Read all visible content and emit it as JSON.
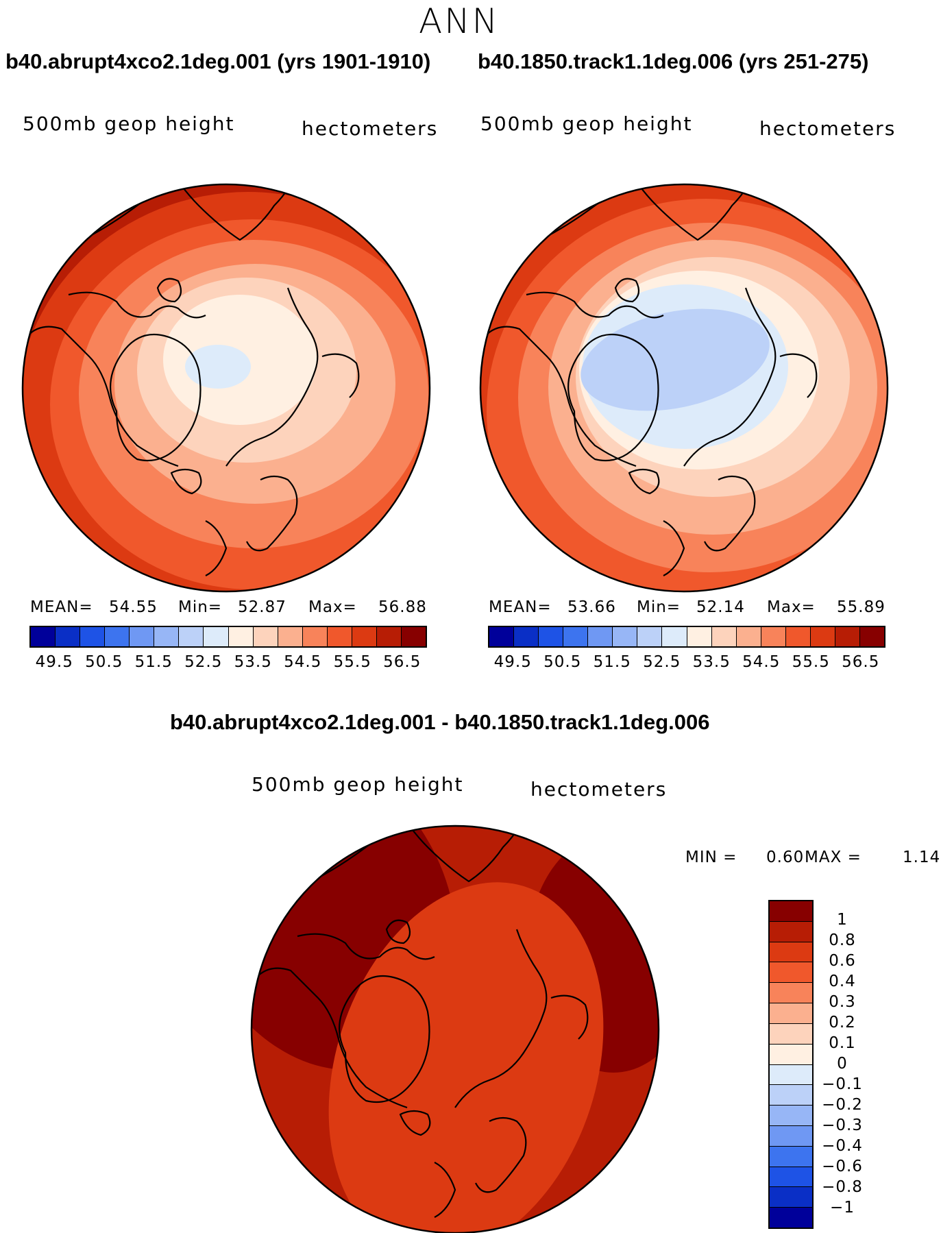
{
  "title": "ANN",
  "panel_left": {
    "case": "b40.abrupt4xco2.1deg.001 (yrs 1901-1910)",
    "variable": "500mb geop height",
    "units": "hectometers",
    "mean_label": "MEAN=",
    "mean": "54.55",
    "min_label": "Min=",
    "min": "52.87",
    "max_label": "Max=",
    "max": "56.88"
  },
  "panel_right": {
    "case": "b40.1850.track1.1deg.006 (yrs 251-275)",
    "variable": "500mb geop height",
    "units": "hectometers",
    "mean_label": "MEAN=",
    "mean": "53.66",
    "min_label": "Min=",
    "min": "52.14",
    "max_label": "Max=",
    "max": "55.89"
  },
  "panel_diff": {
    "case": "b40.abrupt4xco2.1deg.001 - b40.1850.track1.1deg.006",
    "variable": "500mb geop height",
    "units": "hectometers",
    "min_label": "MIN =",
    "min": "0.60",
    "max_label": "MAX =",
    "max": "1.14"
  },
  "colorbar_top": {
    "colors": [
      "#00009a",
      "#0a2fc6",
      "#1e53e6",
      "#3d74ef",
      "#6f98f3",
      "#97b6f6",
      "#bcd1f8",
      "#ddebfa",
      "#fff0e2",
      "#fdd3bc",
      "#fbb08f",
      "#f8835a",
      "#f0582c",
      "#dc3a12",
      "#b71d05",
      "#870000"
    ],
    "tick_labels": [
      "49.5",
      "50.5",
      "51.5",
      "52.5",
      "53.5",
      "54.5",
      "55.5",
      "56.5"
    ]
  },
  "colorbar_diff": {
    "colors": [
      "#870000",
      "#b71d05",
      "#dc3a12",
      "#f0582c",
      "#f8835a",
      "#fbb08f",
      "#fdd3bc",
      "#fff0e2",
      "#ddebfa",
      "#bcd1f8",
      "#97b6f6",
      "#6f98f3",
      "#3d74ef",
      "#1e53e6",
      "#0a2fc6",
      "#00009a"
    ],
    "tick_labels": [
      "1",
      "0.8",
      "0.6",
      "0.4",
      "0.3",
      "0.2",
      "0.1",
      "0",
      "−0.1",
      "−0.2",
      "−0.3",
      "−0.4",
      "−0.6",
      "−0.8",
      "−1"
    ]
  }
}
